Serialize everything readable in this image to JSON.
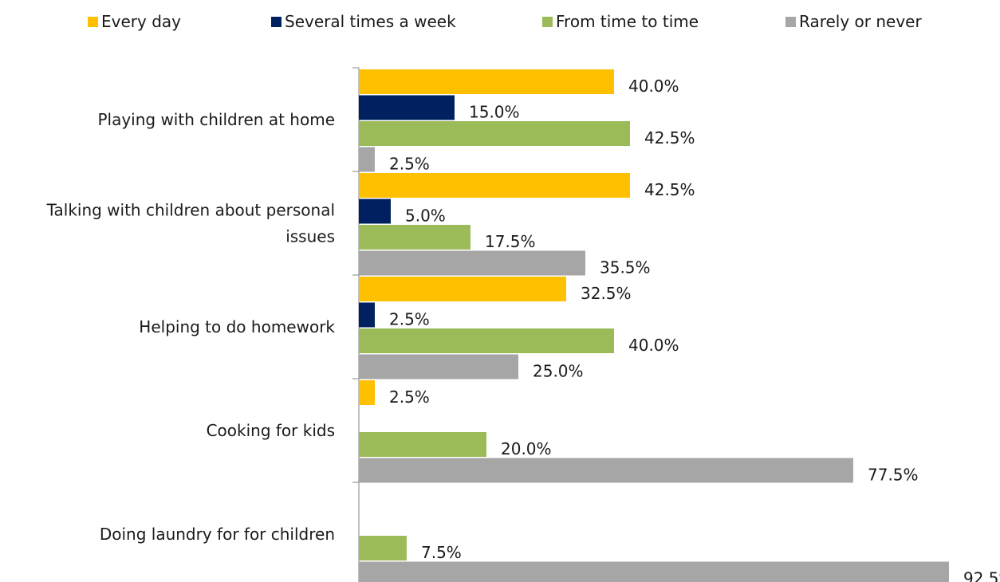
{
  "chart_data": {
    "type": "bar",
    "orientation": "horizontal",
    "categories": [
      "Playing with children at home",
      "Talking with children about personal issues",
      "Helping to do homework",
      "Cooking for kids",
      "Doing laundry for for children"
    ],
    "category_label_lines": [
      [
        "Playing with children at home"
      ],
      [
        "Talking with children about personal",
        "issues"
      ],
      [
        "Helping to do homework"
      ],
      [
        "Cooking for kids"
      ],
      [
        "Doing laundry for for children"
      ]
    ],
    "series": [
      {
        "name": "Every day",
        "color": "#FFC000",
        "values": [
          40.0,
          42.5,
          32.5,
          2.5,
          null
        ]
      },
      {
        "name": "Several times a week",
        "color": "#002060",
        "values": [
          15.0,
          5.0,
          2.5,
          null,
          null
        ]
      },
      {
        "name": "From time to time",
        "color": "#9BBB59",
        "values": [
          42.5,
          17.5,
          40.0,
          20.0,
          7.5
        ]
      },
      {
        "name": "Rarely or never",
        "color": "#A6A6A6",
        "values": [
          2.5,
          35.5,
          25.0,
          77.5,
          92.5
        ]
      }
    ],
    "value_suffix": "%",
    "xlim": [
      0,
      100
    ],
    "grid": false,
    "legend_position": "top",
    "title": "",
    "xlabel": "",
    "ylabel": ""
  }
}
